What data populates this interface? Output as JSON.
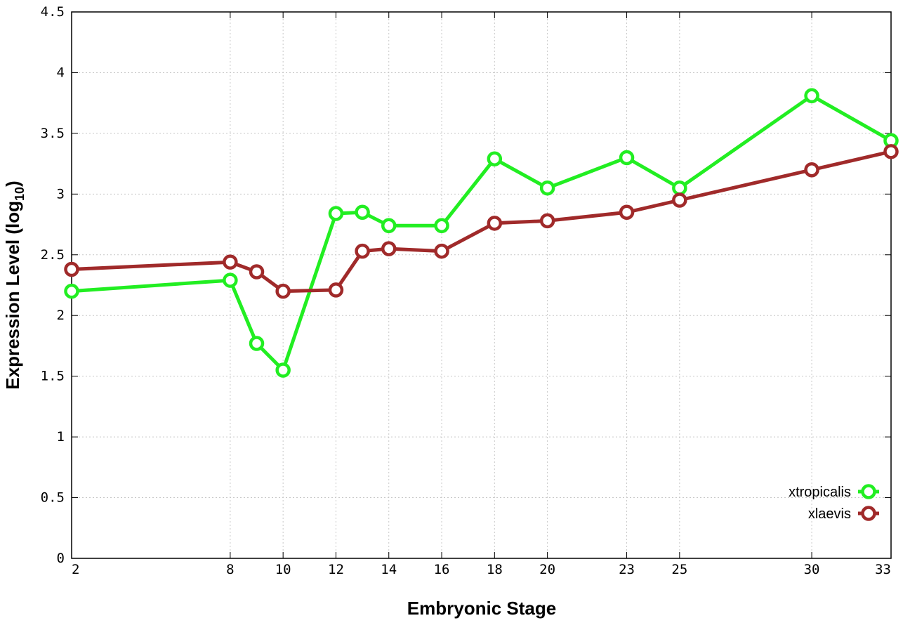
{
  "chart_data": {
    "type": "line",
    "xlabel": "Embryonic Stage",
    "ylabel_main": "Expression Level (log",
    "ylabel_sub": "10",
    "ylabel_close": ")",
    "xlim": [
      2,
      33
    ],
    "ylim": [
      0,
      4.5
    ],
    "x": [
      2,
      8,
      9,
      10,
      12,
      13,
      14,
      16,
      18,
      20,
      23,
      25,
      30,
      33
    ],
    "xtick_labels": [
      "2",
      "8",
      "10",
      "12",
      "14",
      "16",
      "18",
      "20",
      "23",
      "25",
      "30",
      "33"
    ],
    "xtick_values": [
      2,
      8,
      10,
      12,
      14,
      16,
      18,
      20,
      23,
      25,
      30,
      33
    ],
    "ytick_labels": [
      "0",
      "0.5",
      "1",
      "1.5",
      "2",
      "2.5",
      "3",
      "3.5",
      "4",
      "4.5"
    ],
    "ytick_values": [
      0,
      0.5,
      1,
      1.5,
      2,
      2.5,
      3,
      3.5,
      4,
      4.5
    ],
    "grid": true,
    "legend_position": "bottom-right",
    "series": [
      {
        "name": "xtropicalis",
        "color": "#22ee22",
        "values": [
          2.2,
          2.29,
          1.77,
          1.55,
          2.84,
          2.85,
          2.74,
          2.74,
          3.29,
          3.05,
          3.3,
          3.05,
          3.81,
          3.44
        ]
      },
      {
        "name": "xlaevis",
        "color": "#a02a2a",
        "values": [
          2.38,
          2.44,
          2.36,
          2.2,
          2.21,
          2.53,
          2.55,
          2.53,
          2.76,
          2.78,
          2.85,
          2.95,
          3.2,
          3.35
        ]
      }
    ]
  }
}
